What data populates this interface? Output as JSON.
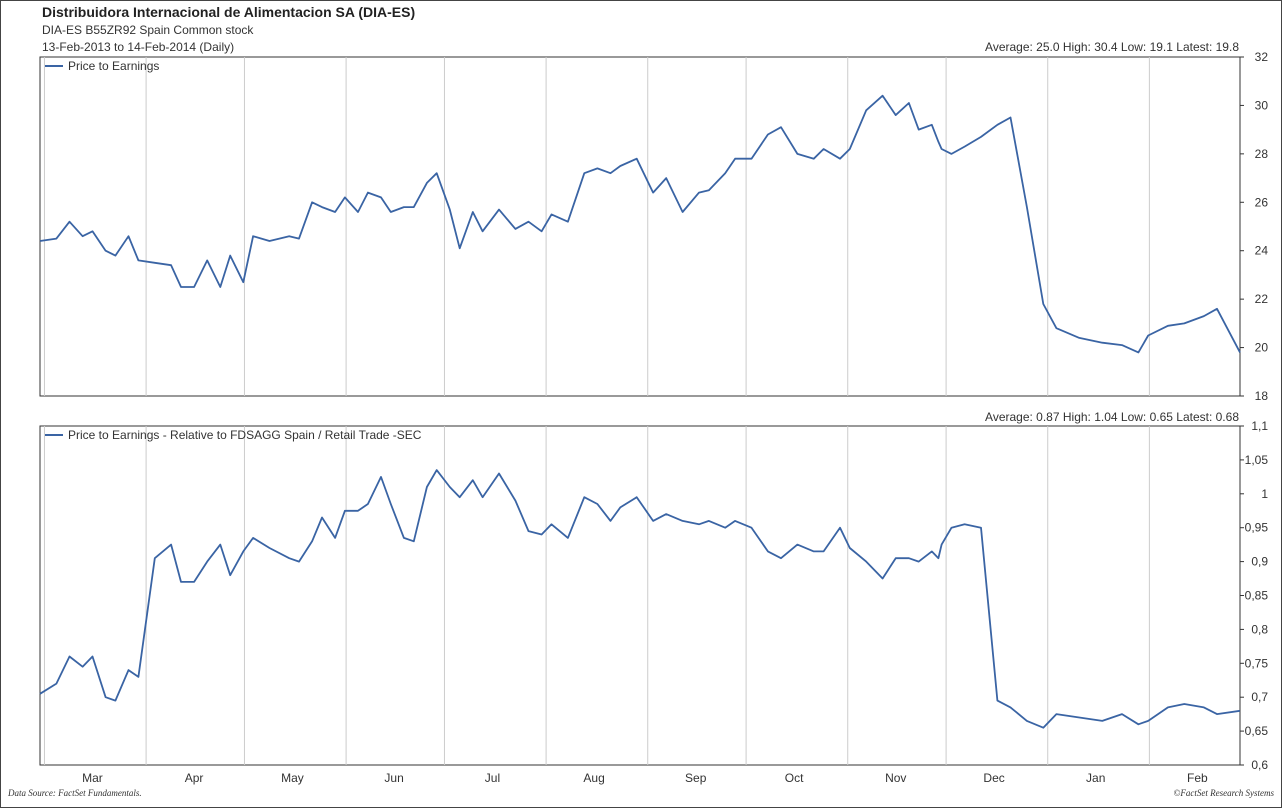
{
  "header": {
    "title": "Distribuidora Internacional de Alimentacion SA (DIA-ES)",
    "subtitle": "DIA-ES   B55ZR92   Spain    Common stock",
    "date_range": "13-Feb-2013 to 14-Feb-2014 (Daily)"
  },
  "footer": {
    "source_left": "Data Source: FactSet Fundamentals.",
    "source_right": "©FactSet Research Systems"
  },
  "x_axis": {
    "months": [
      "Mar",
      "Apr",
      "May",
      "Jun",
      "Jul",
      "Aug",
      "Sep",
      "Oct",
      "Nov",
      "Dec",
      "Jan",
      "Feb"
    ]
  },
  "colors": {
    "line": "#3a64a4",
    "grid": "#cccccc",
    "axis": "#333333"
  },
  "chart_data": [
    {
      "type": "line",
      "stats_text": "Average: 25.0   High: 30.4   Low: 19.1   Latest: 19.8",
      "legend_position": "top-left",
      "grid": true,
      "ylim": [
        18,
        32
      ],
      "yticks": [
        "18",
        "20",
        "22",
        "24",
        "26",
        "28",
        "30",
        "32"
      ],
      "series": [
        {
          "name": "Price to Earnings",
          "x": [
            "2013-02-13",
            "2013-02-18",
            "2013-02-22",
            "2013-02-26",
            "2013-03-01",
            "2013-03-05",
            "2013-03-08",
            "2013-03-12",
            "2013-03-15",
            "2013-03-20",
            "2013-03-25",
            "2013-03-28",
            "2013-04-01",
            "2013-04-05",
            "2013-04-09",
            "2013-04-12",
            "2013-04-16",
            "2013-04-19",
            "2013-04-24",
            "2013-04-30",
            "2013-05-03",
            "2013-05-07",
            "2013-05-10",
            "2013-05-14",
            "2013-05-17",
            "2013-05-21",
            "2013-05-24",
            "2013-05-28",
            "2013-05-31",
            "2013-06-04",
            "2013-06-07",
            "2013-06-11",
            "2013-06-14",
            "2013-06-18",
            "2013-06-21",
            "2013-06-25",
            "2013-06-28",
            "2013-07-03",
            "2013-07-08",
            "2013-07-12",
            "2013-07-16",
            "2013-07-19",
            "2013-07-24",
            "2013-07-29",
            "2013-08-02",
            "2013-08-06",
            "2013-08-09",
            "2013-08-14",
            "2013-08-19",
            "2013-08-23",
            "2013-08-28",
            "2013-09-02",
            "2013-09-05",
            "2013-09-10",
            "2013-09-13",
            "2013-09-18",
            "2013-09-23",
            "2013-09-27",
            "2013-10-02",
            "2013-10-07",
            "2013-10-10",
            "2013-10-15",
            "2013-10-18",
            "2013-10-23",
            "2013-10-28",
            "2013-11-01",
            "2013-11-05",
            "2013-11-08",
            "2013-11-12",
            "2013-11-14",
            "2013-11-15",
            "2013-11-18",
            "2013-11-22",
            "2013-11-27",
            "2013-12-02",
            "2013-12-06",
            "2013-12-11",
            "2013-12-16",
            "2013-12-20",
            "2013-12-27",
            "2014-01-03",
            "2014-01-09",
            "2014-01-14",
            "2014-01-17",
            "2014-01-23",
            "2014-01-28",
            "2014-02-03",
            "2014-02-07",
            "2014-02-14"
          ],
          "y": [
            24.4,
            24.5,
            25.2,
            24.6,
            24.8,
            24.0,
            23.8,
            24.6,
            23.6,
            23.5,
            23.4,
            22.5,
            22.5,
            23.6,
            22.5,
            23.8,
            22.7,
            24.6,
            24.4,
            24.6,
            24.5,
            26.0,
            25.8,
            25.6,
            26.2,
            25.6,
            26.4,
            26.2,
            25.6,
            25.8,
            25.8,
            26.8,
            27.2,
            25.7,
            24.1,
            25.6,
            24.8,
            25.7,
            24.9,
            25.2,
            24.8,
            25.5,
            25.2,
            27.2,
            27.4,
            27.2,
            27.5,
            27.8,
            26.4,
            27.0,
            25.6,
            26.4,
            26.5,
            27.2,
            27.8,
            27.8,
            28.8,
            29.1,
            28.0,
            27.8,
            28.2,
            27.8,
            28.2,
            29.8,
            30.4,
            29.6,
            30.1,
            29.0,
            29.2,
            28.5,
            28.2,
            28.0,
            28.3,
            28.7,
            29.2,
            29.5,
            25.8,
            21.8,
            20.8,
            20.4,
            20.2,
            20.1,
            19.8,
            20.5,
            20.9,
            21.0,
            21.3,
            21.6,
            19.8
          ],
          "values_note": ""
        }
      ]
    },
    {
      "type": "line",
      "stats_text": "Average: 0.87   High: 1.04   Low: 0.65   Latest: 0.68",
      "legend_position": "top-left",
      "grid": true,
      "ylim": [
        0.6,
        1.1
      ],
      "yticks": [
        "0,6",
        "0,65",
        "0,7",
        "0,75",
        "0,8",
        "0,85",
        "0,9",
        "0,95",
        "1",
        "1,05",
        "1,1"
      ],
      "series": [
        {
          "name": "Price to Earnings - Relative to FDSAGG Spain / Retail Trade -SEC",
          "x": [
            "2013-02-13",
            "2013-02-18",
            "2013-02-22",
            "2013-02-26",
            "2013-03-01",
            "2013-03-05",
            "2013-03-08",
            "2013-03-12",
            "2013-03-15",
            "2013-03-20",
            "2013-03-25",
            "2013-03-28",
            "2013-04-01",
            "2013-04-05",
            "2013-04-09",
            "2013-04-12",
            "2013-04-16",
            "2013-04-19",
            "2013-04-24",
            "2013-04-30",
            "2013-05-03",
            "2013-05-07",
            "2013-05-10",
            "2013-05-14",
            "2013-05-17",
            "2013-05-21",
            "2013-05-24",
            "2013-05-28",
            "2013-05-31",
            "2013-06-04",
            "2013-06-07",
            "2013-06-11",
            "2013-06-14",
            "2013-06-18",
            "2013-06-21",
            "2013-06-25",
            "2013-06-28",
            "2013-07-03",
            "2013-07-08",
            "2013-07-12",
            "2013-07-16",
            "2013-07-19",
            "2013-07-24",
            "2013-07-29",
            "2013-08-02",
            "2013-08-06",
            "2013-08-09",
            "2013-08-14",
            "2013-08-19",
            "2013-08-23",
            "2013-08-28",
            "2013-09-02",
            "2013-09-05",
            "2013-09-10",
            "2013-09-13",
            "2013-09-18",
            "2013-09-23",
            "2013-09-27",
            "2013-10-02",
            "2013-10-07",
            "2013-10-10",
            "2013-10-15",
            "2013-10-18",
            "2013-10-23",
            "2013-10-28",
            "2013-11-01",
            "2013-11-05",
            "2013-11-08",
            "2013-11-12",
            "2013-11-14",
            "2013-11-15",
            "2013-11-18",
            "2013-11-22",
            "2013-11-27",
            "2013-12-02",
            "2013-12-06",
            "2013-12-11",
            "2013-12-16",
            "2013-12-20",
            "2013-12-27",
            "2014-01-03",
            "2014-01-09",
            "2014-01-14",
            "2014-01-17",
            "2014-01-23",
            "2014-01-28",
            "2014-02-03",
            "2014-02-07",
            "2014-02-14"
          ],
          "y": [
            0.705,
            0.72,
            0.76,
            0.745,
            0.76,
            0.7,
            0.695,
            0.74,
            0.73,
            0.905,
            0.925,
            0.87,
            0.87,
            0.9,
            0.925,
            0.88,
            0.915,
            0.935,
            0.92,
            0.905,
            0.9,
            0.93,
            0.965,
            0.935,
            0.975,
            0.975,
            0.985,
            1.025,
            0.985,
            0.935,
            0.93,
            1.01,
            1.035,
            1.01,
            0.995,
            1.02,
            0.995,
            1.03,
            0.99,
            0.945,
            0.94,
            0.955,
            0.935,
            0.995,
            0.985,
            0.96,
            0.98,
            0.995,
            0.96,
            0.97,
            0.96,
            0.955,
            0.96,
            0.95,
            0.96,
            0.95,
            0.915,
            0.905,
            0.925,
            0.915,
            0.915,
            0.95,
            0.92,
            0.9,
            0.875,
            0.905,
            0.905,
            0.9,
            0.915,
            0.905,
            0.925,
            0.95,
            0.955,
            0.95,
            0.695,
            0.685,
            0.665,
            0.655,
            0.675,
            0.67,
            0.665,
            0.675,
            0.66,
            0.665,
            0.685,
            0.69,
            0.685,
            0.675,
            0.68
          ],
          "values_note": ""
        }
      ]
    }
  ]
}
